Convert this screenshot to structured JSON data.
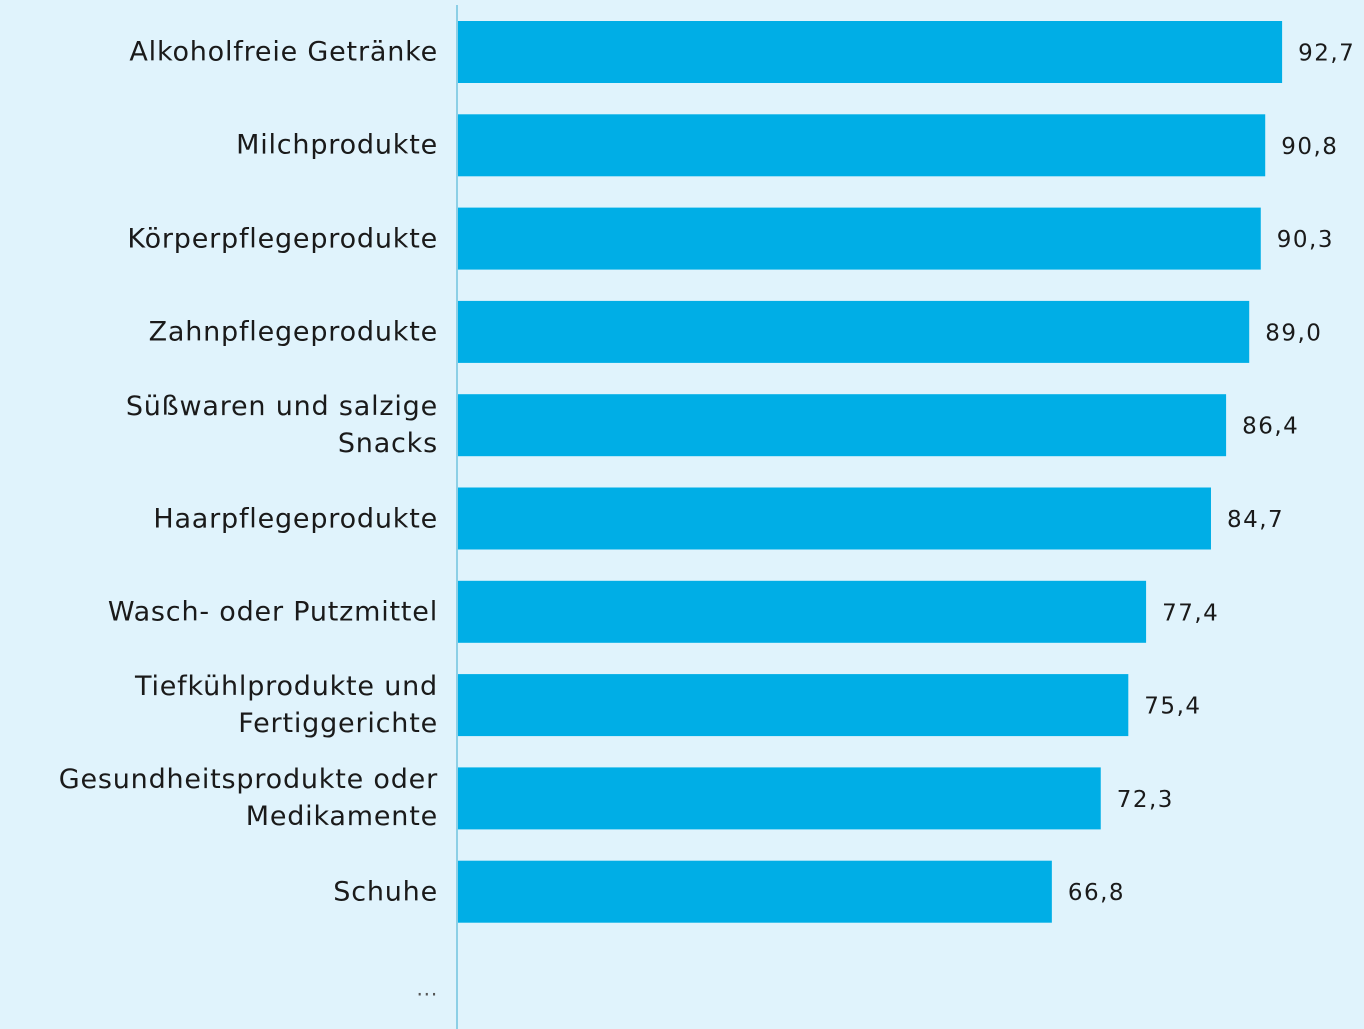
{
  "chart_data": {
    "type": "hbar",
    "categories": [
      "Alkoholfreie Getränke",
      "Milchprodukte",
      "Körperpflegeprodukte",
      "Zahnpflegeprodukte",
      "Süßwaren und salzige\nSnacks",
      "Haarpflegeprodukte",
      "Wasch- oder Putzmittel",
      "Tiefkühlprodukte und\nFertiggerichte",
      "Gesundheitsprodukte oder\nMedikamente",
      "Schuhe",
      "..."
    ],
    "values": [
      92.7,
      90.8,
      90.3,
      89.0,
      86.4,
      84.7,
      77.4,
      75.4,
      72.3,
      66.8,
      null
    ],
    "value_labels": [
      "92,7",
      "90,8",
      "90,3",
      "89,0",
      "86,4",
      "84,7",
      "77,4",
      "75,4",
      "72,3",
      "66,8",
      null
    ],
    "color": "#00aee6",
    "xlim": [
      0,
      100
    ]
  }
}
